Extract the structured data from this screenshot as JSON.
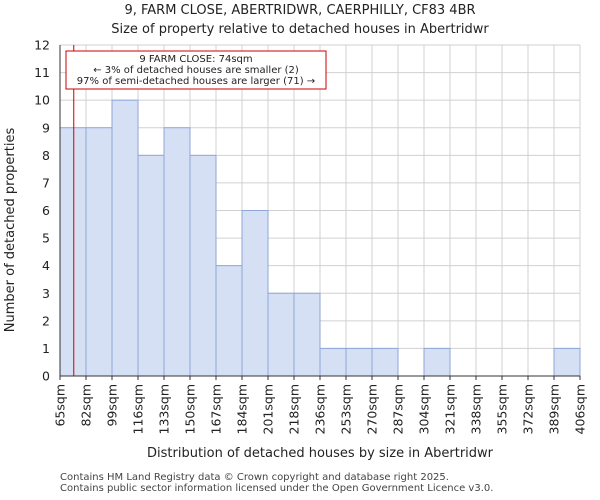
{
  "title": "9, FARM CLOSE, ABERTRIDWR, CAERPHILLY, CF83 4BR",
  "subtitle": "Size of property relative to detached houses in Abertridwr",
  "footer": {
    "line1": "Contains HM Land Registry data © Crown copyright and database right 2025.",
    "line2": "Contains public sector information licensed under the Open Government Licence v3.0."
  },
  "chart_data": {
    "type": "bar",
    "title": "Size of property relative to detached houses in Abertridwr",
    "xlabel": "Distribution of detached houses by size in Abertridwr",
    "ylabel": "Number of detached properties",
    "ylim": [
      0,
      12
    ],
    "yticks": [
      0,
      1,
      2,
      3,
      4,
      5,
      6,
      7,
      8,
      9,
      10,
      11,
      12
    ],
    "bin_edges": [
      "65sqm",
      "82sqm",
      "99sqm",
      "116sqm",
      "133sqm",
      "150sqm",
      "167sqm",
      "184sqm",
      "201sqm",
      "218sqm",
      "236sqm",
      "253sqm",
      "270sqm",
      "287sqm",
      "304sqm",
      "321sqm",
      "338sqm",
      "355sqm",
      "372sqm",
      "389sqm",
      "406sqm"
    ],
    "values": [
      9,
      9,
      10,
      8,
      9,
      8,
      4,
      6,
      3,
      3,
      1,
      1,
      1,
      0,
      1,
      0,
      0,
      0,
      0,
      1
    ],
    "bar_color": "#d6e0f5",
    "bar_edge_color": "#8ea6d8",
    "grid": true,
    "marker": {
      "value": 74,
      "color": "#cc0000",
      "annotation": [
        "9 FARM CLOSE: 74sqm",
        "← 3% of detached houses are smaller (2)",
        "97% of semi-detached houses are larger (71) →"
      ]
    }
  }
}
